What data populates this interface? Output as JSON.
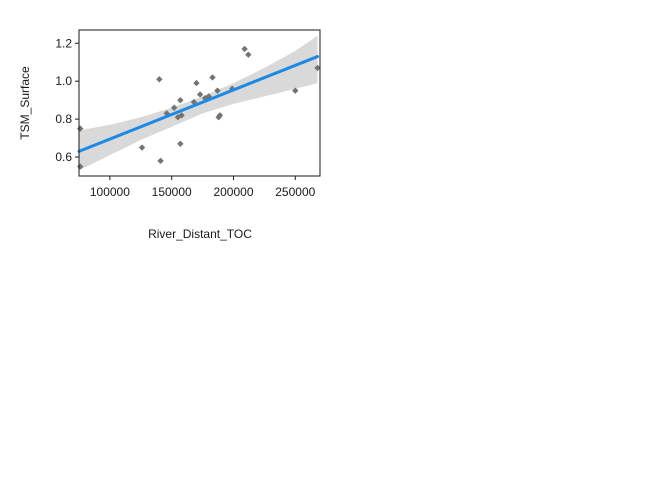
{
  "chart_data": {
    "type": "scatter",
    "title": "",
    "xlabel": "River_Distant_TOC",
    "ylabel": "TSM_Surface",
    "xlim": [
      75000,
      270000
    ],
    "ylim": [
      0.5,
      1.27
    ],
    "xticks": [
      100000,
      150000,
      200000,
      250000
    ],
    "yticks": [
      0.6,
      0.8,
      1.0,
      1.2
    ],
    "xtick_labels": [
      "100000",
      "150000",
      "200000",
      "250000"
    ],
    "ytick_labels": [
      "0.6",
      "0.8",
      "1.0",
      "1.2"
    ],
    "grid": false,
    "legend": "none",
    "point_color": "#737373",
    "fit_color": "#1e88e5",
    "band_color": "#d9d9d9",
    "points": [
      {
        "x": 76000,
        "y": 0.75
      },
      {
        "x": 76000,
        "y": 0.55
      },
      {
        "x": 126000,
        "y": 0.65
      },
      {
        "x": 140000,
        "y": 1.01
      },
      {
        "x": 141000,
        "y": 0.58
      },
      {
        "x": 146000,
        "y": 0.83
      },
      {
        "x": 152000,
        "y": 0.86
      },
      {
        "x": 155000,
        "y": 0.81
      },
      {
        "x": 157000,
        "y": 0.67
      },
      {
        "x": 157000,
        "y": 0.9
      },
      {
        "x": 158000,
        "y": 0.82
      },
      {
        "x": 168000,
        "y": 0.89
      },
      {
        "x": 170000,
        "y": 0.99
      },
      {
        "x": 173000,
        "y": 0.93
      },
      {
        "x": 177000,
        "y": 0.91
      },
      {
        "x": 180000,
        "y": 0.92
      },
      {
        "x": 183000,
        "y": 1.02
      },
      {
        "x": 187000,
        "y": 0.95
      },
      {
        "x": 188000,
        "y": 0.81
      },
      {
        "x": 189000,
        "y": 0.82
      },
      {
        "x": 199000,
        "y": 0.96
      },
      {
        "x": 209000,
        "y": 1.17
      },
      {
        "x": 212000,
        "y": 1.14
      },
      {
        "x": 250000,
        "y": 0.95
      },
      {
        "x": 268000,
        "y": 1.07
      }
    ],
    "fit_line": {
      "x": [
        75000,
        268000
      ],
      "y": [
        0.63,
        1.13
      ]
    },
    "confidence_band": {
      "x": [
        75000,
        100000,
        125000,
        150000,
        175000,
        200000,
        225000,
        250000,
        268000
      ],
      "lower": [
        0.53,
        0.61,
        0.69,
        0.76,
        0.83,
        0.88,
        0.92,
        0.96,
        0.99
      ],
      "upper": [
        0.74,
        0.77,
        0.81,
        0.86,
        0.92,
        0.99,
        1.07,
        1.16,
        1.24
      ]
    }
  }
}
